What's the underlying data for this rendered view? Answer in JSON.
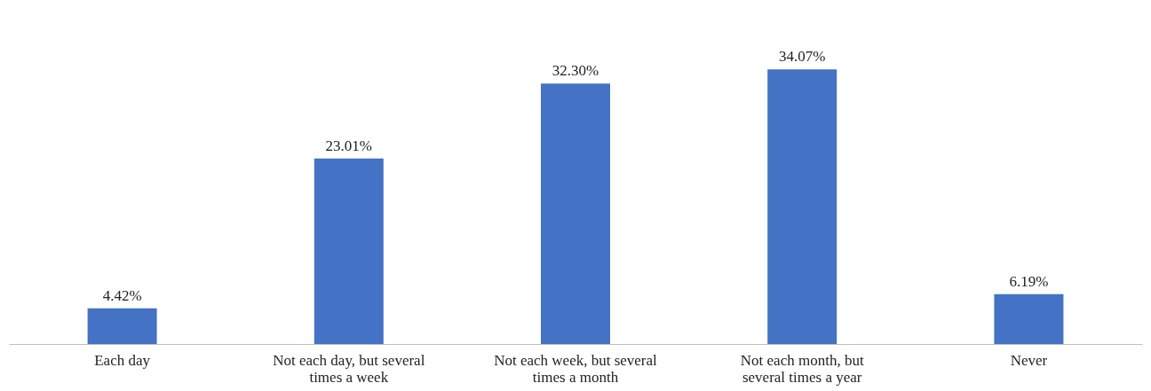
{
  "chart_data": {
    "type": "bar",
    "categories": [
      "Each day",
      "Not each day, but several times a week",
      "Not each week, but several times a month",
      "Not each month, but several times a year",
      "Never"
    ],
    "values": [
      4.42,
      23.01,
      32.3,
      34.07,
      6.19
    ],
    "value_labels": [
      "4.42%",
      "23.01%",
      "32.30%",
      "34.07%",
      "6.19%"
    ],
    "color": "#4472c4"
  }
}
